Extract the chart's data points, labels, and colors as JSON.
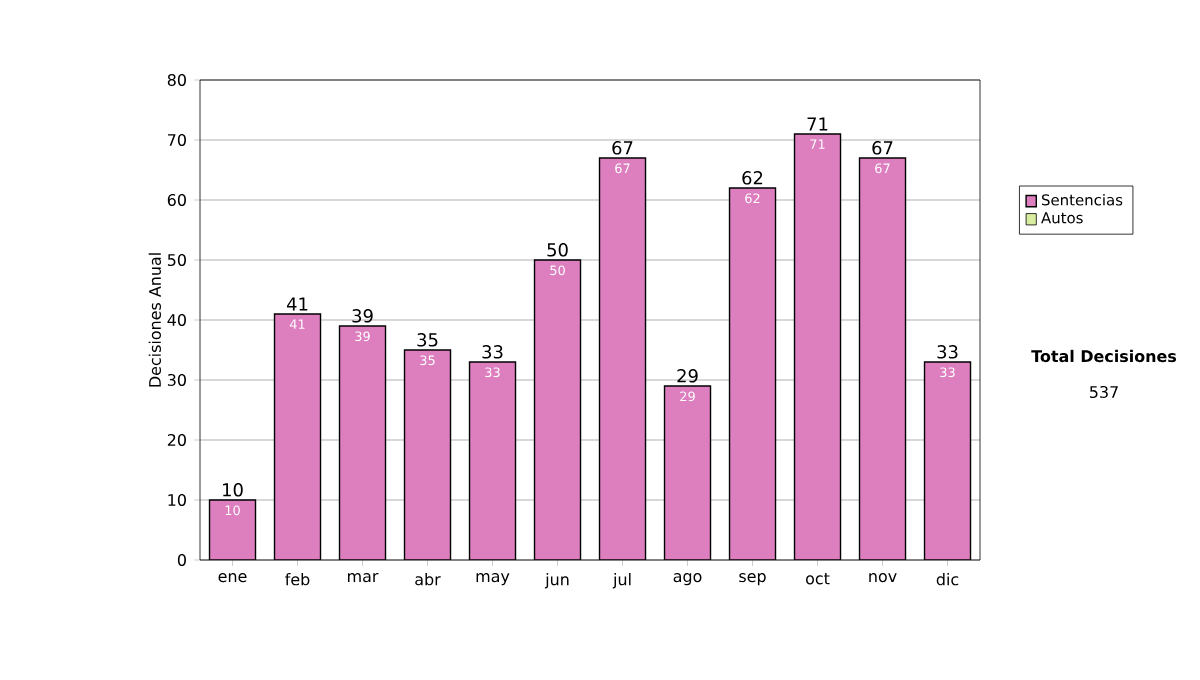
{
  "chart_data": {
    "type": "bar",
    "ylabel": "Decisiones Anual",
    "categories": [
      "ene",
      "feb",
      "mar",
      "abr",
      "may",
      "jun",
      "jul",
      "ago",
      "sep",
      "oct",
      "nov",
      "dic"
    ],
    "series": [
      {
        "name": "Sentencias",
        "color": "#dd7fbf",
        "values": [
          10,
          41,
          39,
          35,
          33,
          50,
          67,
          29,
          62,
          71,
          67,
          33
        ],
        "value_labels": [
          "10",
          "41",
          "39",
          "35",
          "33",
          "50",
          "67",
          "29",
          "62",
          "71",
          "67",
          "33"
        ]
      },
      {
        "name": "Autos",
        "color": "#d8eda0",
        "values": [
          null,
          null,
          null,
          null,
          null,
          null,
          null,
          null,
          null,
          null,
          null,
          null
        ]
      }
    ],
    "totals": [
      "10",
      "41",
      "39",
      "35",
      "33",
      "50",
      "67",
      "29",
      "62",
      "71",
      "67",
      "33"
    ],
    "ylim": [
      0,
      80
    ],
    "yticks": [
      0,
      10,
      20,
      30,
      40,
      50,
      60,
      70,
      80
    ],
    "grid": "y",
    "legend": "right",
    "annotations": [
      "Total Decisiones",
      "537"
    ]
  }
}
